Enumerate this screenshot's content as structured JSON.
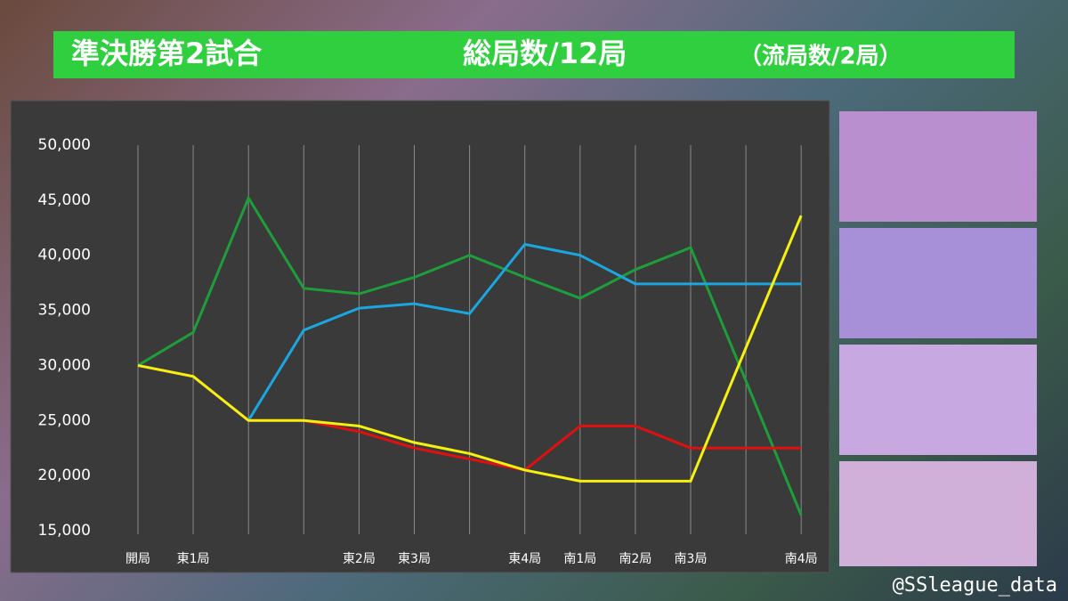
{
  "chart_data": {
    "type": "line",
    "title": "準決勝第2試合",
    "subtitle": "総局数/12局",
    "note": "（流局数/2局）",
    "categories": [
      "開局",
      "東1局",
      null,
      null,
      "東2局",
      "東3局",
      null,
      "東4局",
      "南1局",
      "南2局",
      "南3局",
      null,
      "南4局"
    ],
    "series": [
      {
        "color": "#1e9e3a",
        "values": [
          30000,
          33000,
          45200,
          37000,
          36500,
          38000,
          40000,
          38000,
          36100,
          38700,
          40700,
          28600,
          16400
        ]
      },
      {
        "color": "#1aa7e0",
        "values": [
          30000,
          29000,
          25000,
          33200,
          35200,
          35600,
          34700,
          41000,
          40000,
          37400,
          37400,
          37400,
          37400
        ]
      },
      {
        "color": "#e01010",
        "values": [
          30000,
          29000,
          25000,
          25000,
          24000,
          22500,
          21500,
          20500,
          24500,
          24500,
          22500,
          22500,
          22500
        ]
      },
      {
        "color": "#f5f010",
        "values": [
          30000,
          29000,
          25000,
          25000,
          24500,
          23000,
          22000,
          20500,
          19500,
          19500,
          19500,
          31600,
          43600
        ]
      }
    ],
    "ylim": [
      15000,
      50000
    ],
    "yticks": [
      {
        "value": 15000,
        "label": "15,000"
      },
      {
        "value": 20000,
        "label": "20,000"
      },
      {
        "value": 25000,
        "label": "25,000"
      },
      {
        "value": 30000,
        "label": "30,000"
      },
      {
        "value": 35000,
        "label": "35,000"
      },
      {
        "value": 40000,
        "label": "40,000"
      },
      {
        "value": 45000,
        "label": "45,000"
      },
      {
        "value": 50000,
        "label": "50,000"
      }
    ],
    "grid": true
  },
  "credit": "@SSleague_data"
}
